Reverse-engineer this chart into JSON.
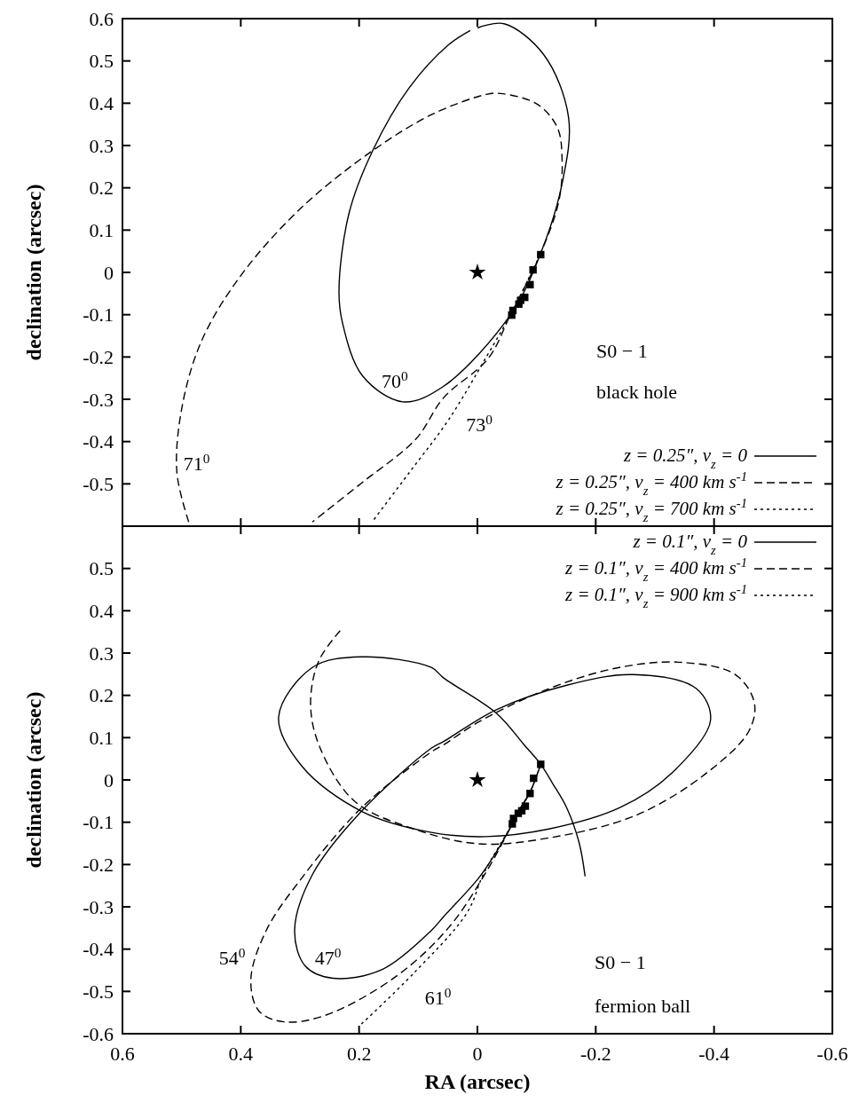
{
  "chart_data": [
    {
      "type": "line",
      "ylabel": "declination (arcsec)",
      "xlim": [
        0.6,
        -0.6
      ],
      "ylim": [
        -0.6,
        0.6
      ],
      "xticks": [
        0.6,
        0.4,
        0.2,
        0,
        -0.2,
        -0.4,
        -0.6
      ],
      "yticks": [
        0.6,
        0.5,
        0.4,
        0.3,
        0.2,
        0.1,
        0,
        -0.1,
        -0.2,
        -0.3,
        -0.4,
        -0.5
      ],
      "tick_labels": "y",
      "legend": "bottom right",
      "grid": false,
      "series": [
        {
          "type": "line",
          "name": "z = 0.25″, v$_{z}$ = 0",
          "color": "#000000",
          "line_style": "solid",
          "marker": "none",
          "x": [
            0,
            -0.045,
            -0.112,
            -0.154,
            -0.143,
            -0.106,
            -0.056,
            0.057,
            0.126,
            0.194,
            0.228,
            0.234,
            0.217,
            0.177,
            0.115,
            0.048,
            0.012
          ],
          "values": [
            0.578,
            0.588,
            0.515,
            0.367,
            0.209,
            0.042,
            -0.1,
            -0.269,
            -0.306,
            -0.245,
            -0.12,
            -0.042,
            0.14,
            0.288,
            0.437,
            0.539,
            0.572
          ]
        },
        {
          "type": "line",
          "name": "z = 0.25″, v$_{z}$ = 400 km s$^{-1}$",
          "color": "#000000",
          "line_style": "dashed",
          "marker": "none",
          "x": [
            0.488,
            0.508,
            0.499,
            0.465,
            0.397,
            0.296,
            0.177,
            0.076,
            -0.015,
            -0.039,
            -0.101,
            -0.135,
            -0.143,
            -0.138,
            -0.106,
            -0.056,
            -0.018,
            0.057,
            0.104,
            0.194,
            0.279
          ],
          "values": [
            -0.59,
            -0.473,
            -0.316,
            -0.158,
            -0.002,
            0.155,
            0.288,
            0.374,
            0.421,
            0.423,
            0.398,
            0.343,
            0.273,
            0.171,
            0.042,
            -0.1,
            -0.204,
            -0.296,
            -0.394,
            -0.496,
            -0.59
          ]
        },
        {
          "type": "line",
          "name": "z = 0.25″, v$_{z}$ = 700 km s$^{-1}$",
          "color": "#000000",
          "line_style": "dotted",
          "marker": "none",
          "x": [
            -0.106,
            -0.056,
            -0.015,
            0.048,
            0.115,
            0.178
          ],
          "values": [
            0.042,
            -0.1,
            -0.2,
            -0.347,
            -0.473,
            -0.59
          ]
        },
        {
          "type": "scatter",
          "color": "#000000",
          "marker": "square",
          "x": [
            -0.107,
            -0.094,
            -0.089,
            -0.08,
            -0.073,
            -0.07,
            -0.06,
            -0.058
          ],
          "values": [
            0.042,
            0.006,
            -0.029,
            -0.059,
            -0.066,
            -0.075,
            -0.09,
            -0.101
          ]
        },
        {
          "type": "scatter",
          "color": "#000000",
          "marker": "star",
          "x": [
            0
          ],
          "values": [
            0
          ]
        }
      ],
      "annotations": [
        "70$^{0}$",
        "73$^{0}$",
        "71$^{0}$",
        "S0 − 1",
        "black hole"
      ]
    },
    {
      "type": "line",
      "xlabel": "RA (arcsec)",
      "ylabel": "declination (arcsec)",
      "xlim": [
        0.6,
        -0.6
      ],
      "ylim": [
        -0.6,
        0.6
      ],
      "xticks": [
        0.6,
        0.4,
        0.2,
        0,
        -0.2,
        -0.4,
        -0.6
      ],
      "yticks": [
        0.5,
        0.4,
        0.3,
        0.2,
        0.1,
        0,
        -0.1,
        -0.2,
        -0.3,
        -0.4,
        -0.5,
        -0.6
      ],
      "legend": "top right",
      "grid": false,
      "series": [
        {
          "type": "line",
          "name": "z = 0.1″, v$_{z}$ = 0",
          "color": "#000000",
          "line_style": "solid",
          "marker": "none",
          "x": [
            -0.182,
            -0.172,
            -0.151,
            -0.127,
            -0.107,
            -0.079,
            -0.032,
            0.057,
            0.078,
            0.196,
            0.279,
            0.336,
            0.297,
            0.196,
            0.078,
            -0.014,
            -0.121,
            -0.24,
            -0.329,
            -0.394,
            -0.37,
            -0.263,
            -0.151,
            -0.032,
            0.057,
            0.078,
            0.196,
            0.279,
            0.309,
            0.291,
            0.244,
            0.161,
            0.078,
            0.057,
            -0.002,
            -0.033,
            -0.059,
            -0.073,
            -0.089,
            -0.107
          ],
          "values": [
            -0.228,
            -0.149,
            -0.066,
            -0.008,
            0.037,
            0.083,
            0.158,
            0.241,
            0.266,
            0.291,
            0.266,
            0.149,
            0.033,
            -0.074,
            -0.124,
            -0.134,
            -0.116,
            -0.066,
            0.017,
            0.141,
            0.216,
            0.249,
            0.224,
            0.166,
            0.091,
            0.075,
            -0.074,
            -0.224,
            -0.356,
            -0.44,
            -0.469,
            -0.448,
            -0.356,
            -0.323,
            -0.232,
            -0.168,
            -0.104,
            -0.066,
            -0.029,
            0.037
          ]
        },
        {
          "type": "line",
          "name": "z = 0.1″, v$_{z}$ = 400 km s$^{-1}$",
          "color": "#000000",
          "line_style": "dashed",
          "marker": "none",
          "x": [
            0.232,
            0.268,
            0.282,
            0.268,
            0.208,
            0.107,
            -0.002,
            -0.121,
            -0.269,
            -0.388,
            -0.459,
            -0.468,
            -0.436,
            -0.346,
            -0.24,
            -0.121,
            -0.002,
            0.057,
            0.078,
            0.196,
            0.297,
            0.357,
            0.383,
            0.369,
            0.327,
            0.256,
            0.137,
            0.048,
            -0.018,
            -0.059,
            -0.073,
            -0.089,
            -0.107
          ],
          "values": [
            0.353,
            0.282,
            0.183,
            0.083,
            -0.05,
            -0.116,
            -0.151,
            -0.137,
            -0.083,
            0.017,
            0.116,
            0.183,
            0.249,
            0.278,
            0.266,
            0.216,
            0.137,
            0.083,
            0.066,
            -0.066,
            -0.232,
            -0.356,
            -0.473,
            -0.547,
            -0.572,
            -0.556,
            -0.464,
            -0.348,
            -0.21,
            -0.104,
            -0.066,
            -0.029,
            0.037
          ]
        },
        {
          "type": "line",
          "name": "z = 0.1″, v$_{z}$ = 900 km s$^{-1}$",
          "color": "#000000",
          "line_style": "dotted",
          "marker": "none",
          "x": [
            0.196,
            0.107,
            0.018,
            -0.011,
            -0.059,
            -0.073,
            -0.089,
            -0.107
          ],
          "values": [
            -0.577,
            -0.456,
            -0.315,
            -0.22,
            -0.104,
            -0.066,
            -0.029,
            0.037
          ]
        },
        {
          "type": "scatter",
          "color": "#000000",
          "marker": "square",
          "x": [
            -0.107,
            -0.095,
            -0.089,
            -0.081,
            -0.075,
            -0.069,
            -0.061,
            -0.059
          ],
          "values": [
            0.037,
            0.004,
            -0.032,
            -0.062,
            -0.073,
            -0.079,
            -0.091,
            -0.104
          ]
        },
        {
          "type": "scatter",
          "color": "#000000",
          "marker": "star",
          "x": [
            0
          ],
          "values": [
            0
          ]
        }
      ],
      "annotations": [
        "54$^{0}$",
        "47$^{0}$",
        "61$^{0}$",
        "S0 − 1",
        "fermion ball"
      ]
    }
  ]
}
